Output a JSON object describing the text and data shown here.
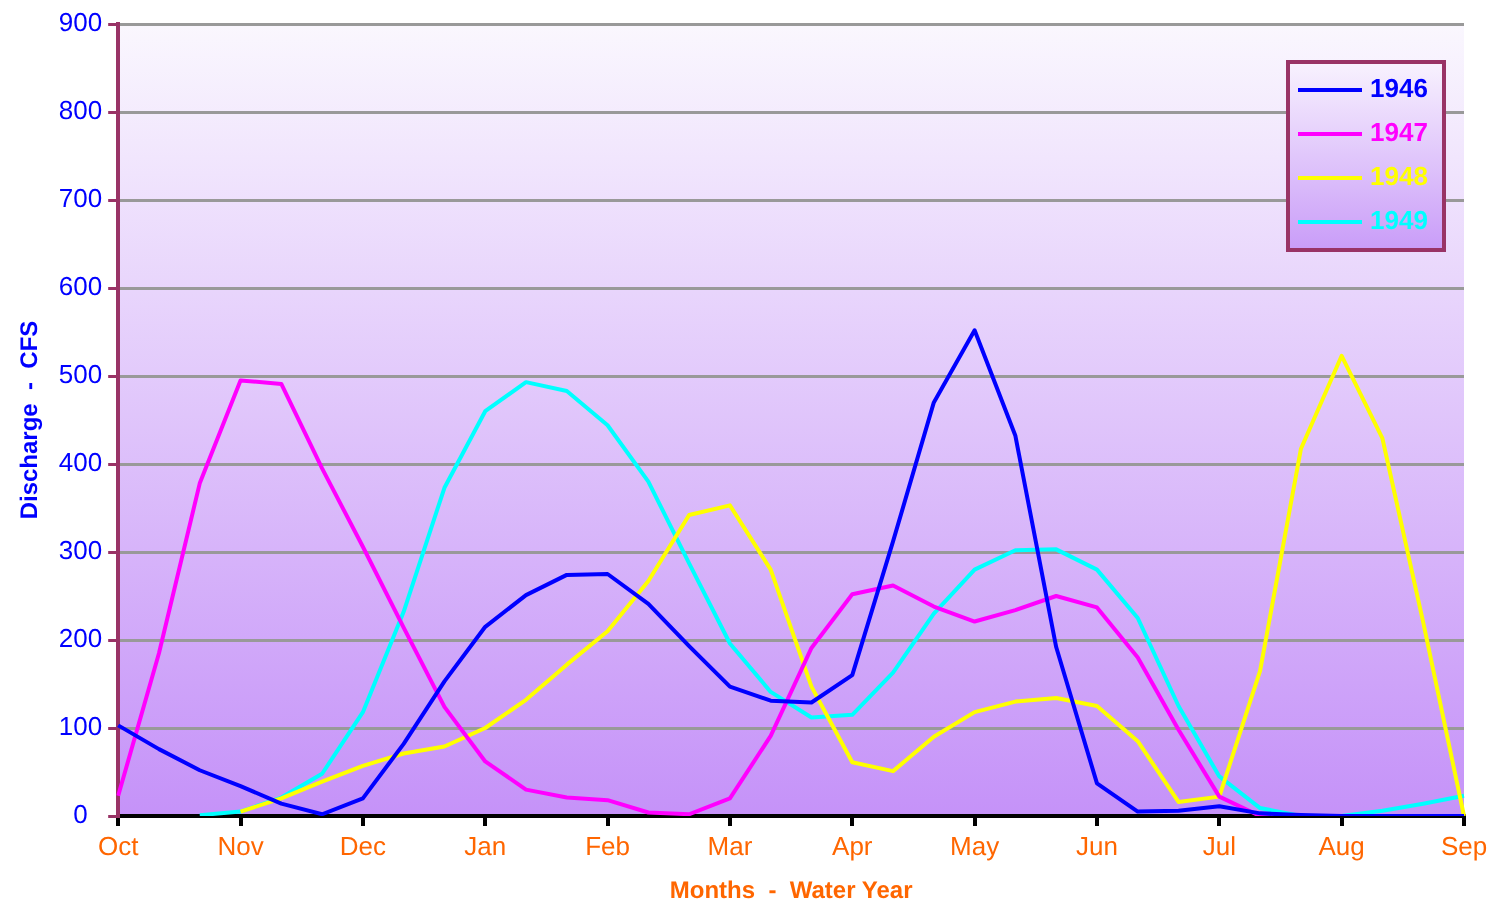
{
  "chart_data": {
    "type": "line",
    "xlabel": "Months  -  Water Year",
    "ylabel": "Discharge  -  CFS",
    "categories": [
      "Oct",
      null,
      null,
      "Nov",
      null,
      null,
      "Dec",
      null,
      null,
      "Jan",
      null,
      null,
      "Feb",
      null,
      null,
      "Mar",
      null,
      null,
      "Apr",
      null,
      null,
      "May",
      null,
      null,
      "Jun",
      null,
      null,
      "Jul",
      null,
      null,
      "Aug",
      null,
      null,
      "Sep"
    ],
    "ylim": [
      0,
      900
    ],
    "yticks": [
      0,
      100,
      200,
      300,
      400,
      500,
      600,
      700,
      800,
      900
    ],
    "grid": "y",
    "legend": "top right",
    "marker": "none",
    "line_style": "solid",
    "series": [
      {
        "name": "1946",
        "color": "#0000ff",
        "values": [
          103,
          76,
          52,
          34,
          14,
          2,
          20,
          82,
          153,
          215,
          251,
          274,
          275,
          241,
          193,
          147,
          131,
          129,
          160,
          312,
          470,
          552,
          432,
          192,
          37,
          5,
          6,
          11,
          3,
          1,
          0,
          0,
          0,
          0
        ]
      },
      {
        "name": "1947",
        "color": "#ff00ff",
        "values": [
          23,
          185,
          378,
          495,
          491,
          395,
          306,
          214,
          124,
          62,
          30,
          21,
          18,
          4,
          2,
          20,
          91,
          191,
          252,
          262,
          238,
          221,
          234,
          250,
          237,
          180,
          98,
          22,
          0,
          0,
          null,
          null,
          null,
          null
        ]
      },
      {
        "name": "1948",
        "color": "#ffff00",
        "values": [
          null,
          null,
          null,
          5,
          20,
          39,
          57,
          71,
          79,
          100,
          132,
          172,
          210,
          267,
          342,
          353,
          280,
          147,
          61,
          51,
          90,
          118,
          130,
          134,
          125,
          85,
          16,
          22,
          165,
          417,
          523,
          429,
          220,
          0
        ]
      },
      {
        "name": "1949",
        "color": "#00ffff",
        "values": [
          null,
          null,
          1,
          5,
          21,
          48,
          118,
          232,
          373,
          460,
          493,
          483,
          444,
          380,
          287,
          196,
          141,
          112,
          115,
          163,
          230,
          280,
          302,
          303,
          280,
          225,
          125,
          45,
          9,
          0,
          0,
          6,
          14,
          23
        ]
      }
    ]
  }
}
